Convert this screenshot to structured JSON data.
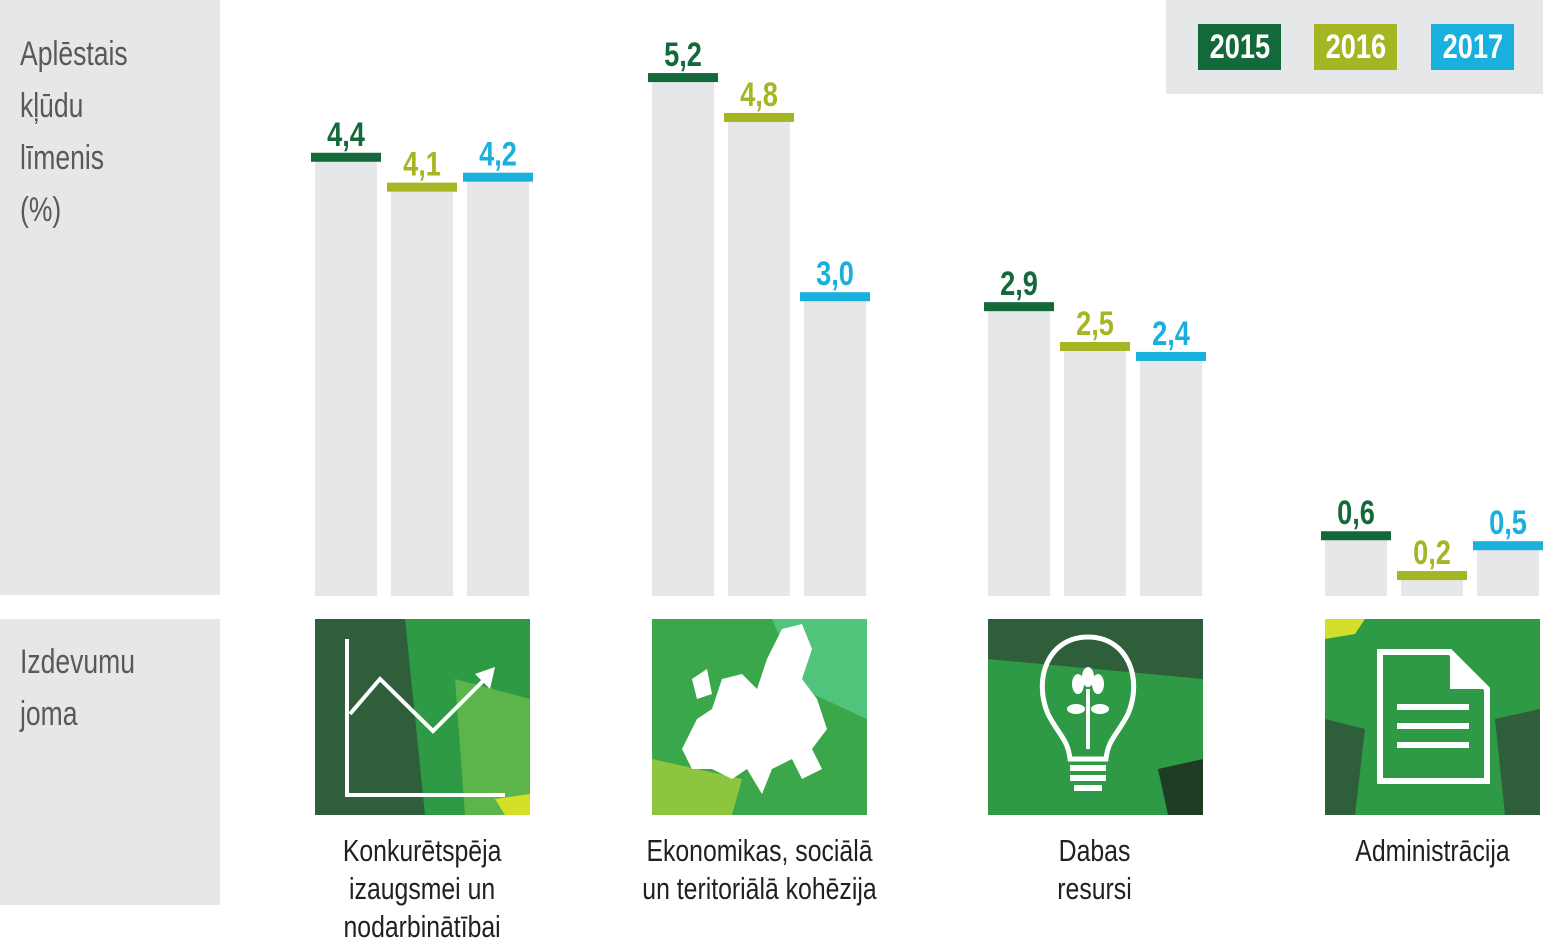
{
  "colors": {
    "2015": "#14693a",
    "2016": "#a6b523",
    "2017": "#1ab0de",
    "bar": "#e6e7e8",
    "tile": "#2e9a45"
  },
  "legend": [
    "2015",
    "2016",
    "2017"
  ],
  "y_axis_label": "Aplēstais\nkļūdu\nlīmenis\n(%)",
  "x_axis_label": "Izdevumu\njoma",
  "chart_data": {
    "type": "bar",
    "ylabel": "Aplēstais kļūdu līmenis (%)",
    "xlabel": "Izdevumu joma",
    "categories": [
      "Konkurētspēja izaugsmei un nodarbinātībai",
      "Ekonomikas, sociālā un teritoriālā kohēzija",
      "Dabas resursi",
      "Administrācija"
    ],
    "category_labels": [
      "Konkurētspēja\nizaugsmei un\nnodarbinātībai",
      "Ekonomikas, sociālā\nun teritoriālā kohēzija",
      "Dabas\nresursi",
      "Administrācija"
    ],
    "category_icons": [
      "growth-chart-icon",
      "eu-map-icon",
      "lightbulb-plant-icon",
      "document-icon"
    ],
    "series": [
      {
        "name": "2015",
        "values": [
          4.4,
          5.2,
          2.9,
          0.6
        ],
        "labels": [
          "4,4",
          "5,2",
          "2,9",
          "0,6"
        ]
      },
      {
        "name": "2016",
        "values": [
          4.1,
          4.8,
          2.5,
          0.2
        ],
        "labels": [
          "4,1",
          "4,8",
          "2,5",
          "0,2"
        ]
      },
      {
        "name": "2017",
        "values": [
          4.2,
          3.0,
          2.4,
          0.5
        ],
        "labels": [
          "4,2",
          "3,0",
          "2,4",
          "0,5"
        ]
      }
    ],
    "ylim": [
      0,
      5.6
    ],
    "grid": false,
    "legend_position": "top-right"
  }
}
